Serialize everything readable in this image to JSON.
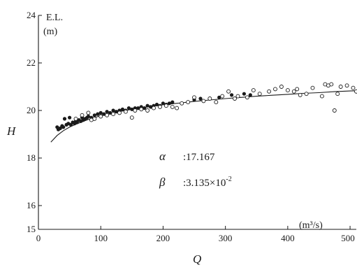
{
  "chart_data": {
    "type": "scatter",
    "title": "",
    "xlabel": "Q",
    "ylabel": "H",
    "x_unit": "(m³/s)",
    "y_unit_line1": "E.L.",
    "y_unit_line2": "(m)",
    "xlim": [
      0,
      510
    ],
    "ylim": [
      15,
      24
    ],
    "x_ticks": [
      0,
      100,
      200,
      300,
      400,
      500
    ],
    "y_ticks": [
      15,
      16,
      18,
      20,
      22,
      24
    ],
    "grid": false,
    "legend": null,
    "colors": {
      "ink": "#1a1a1a",
      "background": "#ffffff"
    },
    "annotations": {
      "alpha_symbol": "α",
      "alpha_value": ":17.167",
      "beta_symbol": "β",
      "beta_value_prefix": ":3.135×10",
      "beta_value_exp": "-2"
    },
    "fit_curve": {
      "name": "",
      "points": [
        [
          20,
          18.67
        ],
        [
          30,
          18.95
        ],
        [
          40,
          19.15
        ],
        [
          50,
          19.3
        ],
        [
          60,
          19.42
        ],
        [
          80,
          19.62
        ],
        [
          100,
          19.78
        ],
        [
          125,
          19.93
        ],
        [
          150,
          20.05
        ],
        [
          175,
          20.15
        ],
        [
          200,
          20.24
        ],
        [
          225,
          20.31
        ],
        [
          250,
          20.38
        ],
        [
          275,
          20.44
        ],
        [
          300,
          20.5
        ],
        [
          325,
          20.55
        ],
        [
          350,
          20.6
        ],
        [
          375,
          20.64
        ],
        [
          400,
          20.68
        ],
        [
          425,
          20.72
        ],
        [
          450,
          20.75
        ],
        [
          475,
          20.79
        ],
        [
          500,
          20.82
        ],
        [
          510,
          20.83
        ]
      ]
    },
    "series": [
      {
        "name": "",
        "marker": "filled",
        "points": [
          [
            30,
            19.3
          ],
          [
            32,
            19.2
          ],
          [
            35,
            19.25
          ],
          [
            38,
            19.35
          ],
          [
            40,
            19.3
          ],
          [
            42,
            19.65
          ],
          [
            45,
            19.4
          ],
          [
            48,
            19.45
          ],
          [
            50,
            19.7
          ],
          [
            52,
            19.4
          ],
          [
            55,
            19.5
          ],
          [
            58,
            19.45
          ],
          [
            60,
            19.55
          ],
          [
            62,
            19.5
          ],
          [
            65,
            19.6
          ],
          [
            68,
            19.55
          ],
          [
            70,
            19.7
          ],
          [
            72,
            19.6
          ],
          [
            75,
            19.65
          ],
          [
            78,
            19.7
          ],
          [
            80,
            19.75
          ],
          [
            85,
            19.7
          ],
          [
            90,
            19.8
          ],
          [
            95,
            19.85
          ],
          [
            100,
            19.9
          ],
          [
            105,
            19.85
          ],
          [
            110,
            19.95
          ],
          [
            115,
            19.9
          ],
          [
            120,
            20.0
          ],
          [
            125,
            19.95
          ],
          [
            130,
            20.0
          ],
          [
            135,
            20.05
          ],
          [
            140,
            20.0
          ],
          [
            145,
            20.1
          ],
          [
            150,
            20.05
          ],
          [
            155,
            20.1
          ],
          [
            160,
            20.1
          ],
          [
            165,
            20.15
          ],
          [
            170,
            20.1
          ],
          [
            175,
            20.2
          ],
          [
            180,
            20.15
          ],
          [
            185,
            20.2
          ],
          [
            190,
            20.25
          ],
          [
            195,
            20.2
          ],
          [
            200,
            20.3
          ],
          [
            205,
            20.25
          ],
          [
            210,
            20.3
          ],
          [
            215,
            20.35
          ],
          [
            250,
            20.45
          ],
          [
            260,
            20.5
          ],
          [
            290,
            20.55
          ],
          [
            310,
            20.65
          ],
          [
            330,
            20.7
          ],
          [
            340,
            20.65
          ]
        ]
      },
      {
        "name": "",
        "marker": "open",
        "points": [
          [
            60,
            19.65
          ],
          [
            70,
            19.8
          ],
          [
            80,
            19.9
          ],
          [
            85,
            19.6
          ],
          [
            90,
            19.65
          ],
          [
            100,
            19.75
          ],
          [
            110,
            19.8
          ],
          [
            120,
            19.85
          ],
          [
            130,
            19.9
          ],
          [
            140,
            19.95
          ],
          [
            150,
            19.7
          ],
          [
            155,
            20.0
          ],
          [
            165,
            20.05
          ],
          [
            175,
            20.0
          ],
          [
            185,
            20.1
          ],
          [
            195,
            20.15
          ],
          [
            205,
            20.2
          ],
          [
            215,
            20.15
          ],
          [
            222,
            20.1
          ],
          [
            230,
            20.3
          ],
          [
            240,
            20.35
          ],
          [
            250,
            20.55
          ],
          [
            265,
            20.4
          ],
          [
            275,
            20.5
          ],
          [
            285,
            20.35
          ],
          [
            295,
            20.6
          ],
          [
            305,
            20.8
          ],
          [
            315,
            20.5
          ],
          [
            320,
            20.6
          ],
          [
            335,
            20.55
          ],
          [
            345,
            20.85
          ],
          [
            355,
            20.7
          ],
          [
            370,
            20.8
          ],
          [
            380,
            20.9
          ],
          [
            390,
            21.0
          ],
          [
            400,
            20.85
          ],
          [
            410,
            20.8
          ],
          [
            415,
            20.9
          ],
          [
            420,
            20.65
          ],
          [
            430,
            20.7
          ],
          [
            440,
            20.95
          ],
          [
            455,
            20.6
          ],
          [
            460,
            21.1
          ],
          [
            465,
            21.05
          ],
          [
            470,
            21.1
          ],
          [
            475,
            20.0
          ],
          [
            480,
            20.7
          ],
          [
            485,
            21.0
          ],
          [
            495,
            21.05
          ],
          [
            505,
            20.95
          ],
          [
            510,
            20.8
          ]
        ]
      }
    ]
  }
}
